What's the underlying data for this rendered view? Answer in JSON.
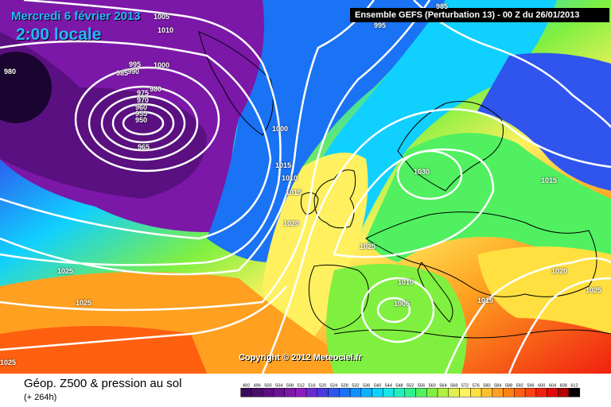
{
  "header": {
    "date": "Mercredi 6 février 2013",
    "hour": "2:00 locale",
    "run": "Ensemble GEFS (Perturbation 13)  -  00 Z du 26/01/2013"
  },
  "copyright": "Copyright © 2012 Meteociel.fr",
  "footer": {
    "title": "Géop. Z500 & pression au sol",
    "subtitle": "(+ 264h)"
  },
  "isobar_labels": [
    "1005",
    "1010",
    "995",
    "985",
    "980",
    "995",
    "990",
    "985",
    "1000",
    "980",
    "975",
    "970",
    "960",
    "955",
    "950",
    "965",
    "1000",
    "1015",
    "1010",
    "1015",
    "1020",
    "1025",
    "1025",
    "1030",
    "1015",
    "1025",
    "1010",
    "1005",
    "1015",
    "1020",
    "1025",
    "1025"
  ],
  "legend": {
    "values": [
      "492",
      "496",
      "500",
      "504",
      "508",
      "512",
      "516",
      "520",
      "524",
      "528",
      "532",
      "536",
      "540",
      "544",
      "548",
      "552",
      "556",
      "560",
      "564",
      "568",
      "572",
      "576",
      "580",
      "584",
      "588",
      "592",
      "596",
      "600",
      "604",
      "608",
      "612"
    ],
    "colors": [
      "#3c0a5a",
      "#4a0f6e",
      "#5a1080",
      "#6a1494",
      "#7b18a8",
      "#8c1cbc",
      "#6a2ad0",
      "#4a3ae0",
      "#2f55ee",
      "#1a72f5",
      "#0e90ff",
      "#0eb0ff",
      "#10d0ff",
      "#1ae6e6",
      "#20f0c0",
      "#30f090",
      "#50f060",
      "#80f040",
      "#b0f040",
      "#e0f050",
      "#fff060",
      "#ffe040",
      "#ffc030",
      "#ffa020",
      "#ff8010",
      "#ff6010",
      "#ff4010",
      "#f02010",
      "#e00808",
      "#b00000",
      "#000000"
    ]
  }
}
